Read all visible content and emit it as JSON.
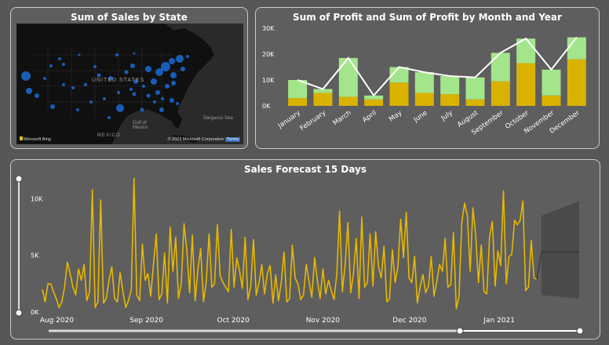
{
  "map_panel": {
    "title": "Sum of Sales by State",
    "country_label": "UNITED STATES",
    "gulf_label": "Gulf of Mexico",
    "sargasso_label": "Sargasso Sea",
    "mexico_label": "MEXICO",
    "provider": "Microsoft Bing",
    "copyright": "© 2023 Microsoft Corporation",
    "terms_label": "Terms",
    "colors": {
      "land": "#111111",
      "water": "#2a2a2a",
      "bubble": "#1a66c9"
    }
  },
  "profit_panel": {
    "title": "Sum of Profit and Sum of Profit by Month and Year"
  },
  "forecast_panel": {
    "title": "Sales Forecast 15 Days",
    "colors": {
      "line": "#e6b800",
      "forecast_band": "#4a4a4a",
      "forecast_line": "#333333"
    }
  },
  "chart_data": [
    {
      "type": "bar",
      "title": "Sum of Profit and Sum of Profit by Month and Year",
      "categories": [
        "January",
        "February",
        "March",
        "April",
        "May",
        "June",
        "July",
        "August",
        "September",
        "October",
        "November",
        "December"
      ],
      "yticks": [
        "0K",
        "10K",
        "20K",
        "30K"
      ],
      "ylim": [
        0,
        30000
      ],
      "stacked": true,
      "series": [
        {
          "values": [
            3000,
            5000,
            3500,
            2500,
            9000,
            5000,
            4500,
            2500,
            9500,
            16500,
            4000,
            18000
          ],
          "color": "#d9b200"
        },
        {
          "values": [
            7000,
            1500,
            15000,
            1500,
            6000,
            8000,
            7000,
            8500,
            11000,
            9500,
            10000,
            8500
          ],
          "color": "#a3e58a"
        }
      ],
      "line": {
        "values": [
          10000,
          6500,
          18500,
          4000,
          15000,
          13000,
          11500,
          11000,
          20500,
          26000,
          14000,
          26500
        ],
        "color": "#ffffff"
      },
      "grid": false,
      "legend": "none"
    },
    {
      "type": "line",
      "title": "Sales Forecast 15 Days",
      "x_start": "2020-07-27",
      "x_end": "2021-01-14",
      "xticks": [
        "Aug 2020",
        "Sep 2020",
        "Oct 2020",
        "Nov 2020",
        "Dec 2020",
        "Jan 2021"
      ],
      "yticks": [
        "0K",
        "5K",
        "10K"
      ],
      "ylim": [
        0,
        11000
      ],
      "series": [
        {
          "values": [
            2000,
            900,
            2500,
            2500,
            1800,
            1200,
            400,
            900,
            2200,
            4400,
            3400,
            2200,
            1500,
            3800,
            2800,
            4200,
            1000,
            1800,
            10800,
            400,
            900,
            9900,
            800,
            1200,
            2800,
            4000,
            1200,
            900,
            3500,
            1800,
            400,
            1000,
            2000,
            11800,
            1500,
            1000,
            6000,
            2800,
            3400,
            1400,
            4200,
            6900,
            1100,
            1600,
            5200,
            800,
            7500,
            3600,
            6600,
            1200,
            2500,
            7800,
            5500,
            1700,
            6800,
            1000,
            3800,
            5600,
            900,
            2700,
            6900,
            2200,
            2500,
            7700,
            3200,
            2600,
            2200,
            1800,
            7300,
            2200,
            4800,
            3600,
            2100,
            6600,
            1100,
            2200,
            6400,
            1500,
            2600,
            4200,
            1600,
            3400,
            4100,
            800,
            3300,
            1000,
            2600,
            5300,
            900,
            1200,
            5900,
            3000,
            2500,
            1100,
            1500,
            4200,
            2700,
            1300,
            4800,
            2800,
            1200,
            3800,
            1600,
            2800,
            1900,
            1100,
            3400,
            8900,
            1800,
            4200,
            7900,
            1700,
            3400,
            6500,
            1200,
            8400,
            2200,
            2600,
            6900,
            2300,
            7100,
            4000,
            3000,
            5800,
            900,
            1200,
            5500,
            2600,
            4000,
            8200,
            4800,
            8800,
            3000,
            2600,
            4900,
            800,
            2200,
            3300,
            1700,
            2300,
            4900,
            1400,
            2700,
            4200,
            3600,
            6500,
            2200,
            2400,
            7000,
            300,
            1400,
            7900,
            9600,
            8500,
            3600,
            9200,
            6800,
            2600,
            5900,
            1800,
            1600,
            6600,
            8000,
            2300,
            5400,
            4100,
            10700,
            2500,
            4900,
            5100,
            8100,
            7700,
            8100,
            9800,
            1900,
            2200,
            6300,
            3000,
            2900
          ]
        }
      ],
      "forecast": {
        "points": 15,
        "center": 5300,
        "upper_start": 8500,
        "upper_end": 9800,
        "lower_start": 1500,
        "lower_end": 1200
      },
      "grid": false,
      "legend": "none"
    }
  ]
}
